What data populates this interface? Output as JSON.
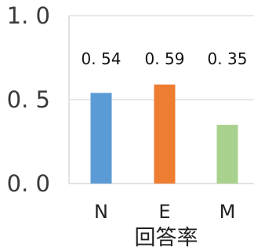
{
  "chart_data": {
    "type": "bar",
    "title": "",
    "xlabel": "回答率",
    "ylabel": "",
    "categories": [
      "N",
      "E",
      "M"
    ],
    "series": [
      {
        "values": [
          0.54,
          0.59,
          0.35
        ],
        "data_labels": [
          "0. 54",
          "0. 59",
          "0. 35"
        ],
        "colors": [
          "#5b9bd5",
          "#ed7d31",
          "#a9d18e"
        ]
      }
    ],
    "ylim": [
      0.0,
      1.0
    ],
    "yticks": [
      0.0,
      0.5,
      1.0
    ],
    "ytick_labels": [
      "0. 0",
      "0. 5",
      "1. 0"
    ],
    "grid": true,
    "legend": "none",
    "colors": {
      "gridline": "#d9d9d9",
      "frame": "#d0d0d0"
    }
  }
}
